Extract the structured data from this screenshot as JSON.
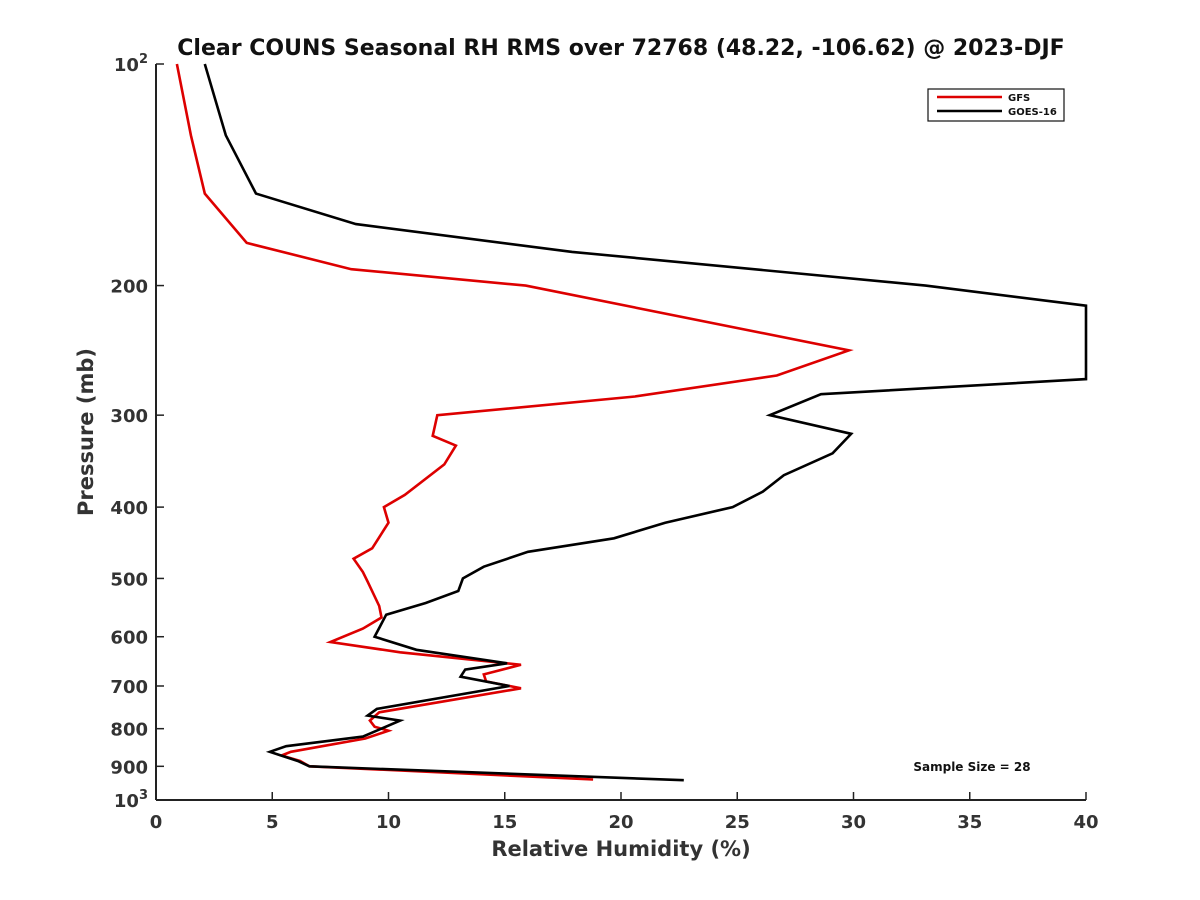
{
  "chart_data": {
    "type": "line",
    "title": "Clear COUNS Seasonal RH RMS over 72768 (48.22, -106.62) @ 2023-DJF",
    "xlabel": "Relative Humidity (%)",
    "ylabel": "Pressure (mb)",
    "xlim": [
      0,
      40
    ],
    "ylim": [
      100,
      1000
    ],
    "yscale": "log",
    "y_reversed": true,
    "legend_position": "top-right",
    "annotation": "Sample Size = 28",
    "x_ticks": [
      "0",
      "5",
      "10",
      "15",
      "20",
      "25",
      "30",
      "35",
      "40"
    ],
    "y_ticks": [
      {
        "value": 100,
        "base": "10",
        "exp": "2"
      },
      {
        "value": 200,
        "label": "200"
      },
      {
        "value": 300,
        "label": "300"
      },
      {
        "value": 400,
        "label": "400"
      },
      {
        "value": 500,
        "label": "500"
      },
      {
        "value": 600,
        "label": "600"
      },
      {
        "value": 700,
        "label": "700"
      },
      {
        "value": 800,
        "label": "800"
      },
      {
        "value": 900,
        "label": "900"
      },
      {
        "value": 1000,
        "base": "10",
        "exp": "3"
      }
    ],
    "series": [
      {
        "name": "GFS",
        "color": "#dd0000",
        "x": [
          0.9,
          1.5,
          2.1,
          3.9,
          8.4,
          15.9,
          29.8,
          26.7,
          20.6,
          12.1,
          11.9,
          12.9,
          12.4,
          10.7,
          9.8,
          10.0,
          9.3,
          8.5,
          8.9,
          9.1,
          9.6,
          9.7,
          8.9,
          7.5,
          10.5,
          15.7,
          14.1,
          14.2,
          15.7,
          9.6,
          9.2,
          9.4,
          10.0,
          9.0,
          5.8,
          5.4,
          6.2,
          6.6,
          18.8
        ],
        "y": [
          100,
          125,
          150,
          175,
          190,
          200,
          245,
          265,
          283,
          300,
          320,
          330,
          350,
          385,
          400,
          420,
          455,
          470,
          490,
          505,
          545,
          565,
          585,
          610,
          630,
          655,
          675,
          690,
          705,
          760,
          780,
          795,
          805,
          825,
          860,
          870,
          885,
          900,
          938
        ]
      },
      {
        "name": "GOES-16",
        "color": "#000000",
        "x": [
          2.1,
          3.0,
          4.3,
          8.6,
          17.9,
          33.1,
          40.0,
          40.0,
          28.6,
          26.4,
          29.9,
          29.1,
          27.0,
          26.1,
          24.8,
          21.9,
          19.7,
          16.0,
          14.1,
          13.2,
          13.0,
          11.6,
          9.9,
          9.4,
          11.2,
          15.1,
          13.3,
          13.1,
          15.2,
          9.5,
          9.1,
          10.5,
          8.9,
          5.6,
          4.9,
          6.1,
          6.6,
          22.7
        ],
        "y": [
          100,
          125,
          150,
          165,
          180,
          200,
          213,
          268,
          281,
          300,
          318,
          338,
          362,
          381,
          400,
          420,
          441,
          460,
          482,
          500,
          520,
          540,
          560,
          600,
          625,
          652,
          665,
          680,
          700,
          752,
          768,
          780,
          820,
          845,
          860,
          885,
          900,
          940
        ]
      }
    ]
  }
}
